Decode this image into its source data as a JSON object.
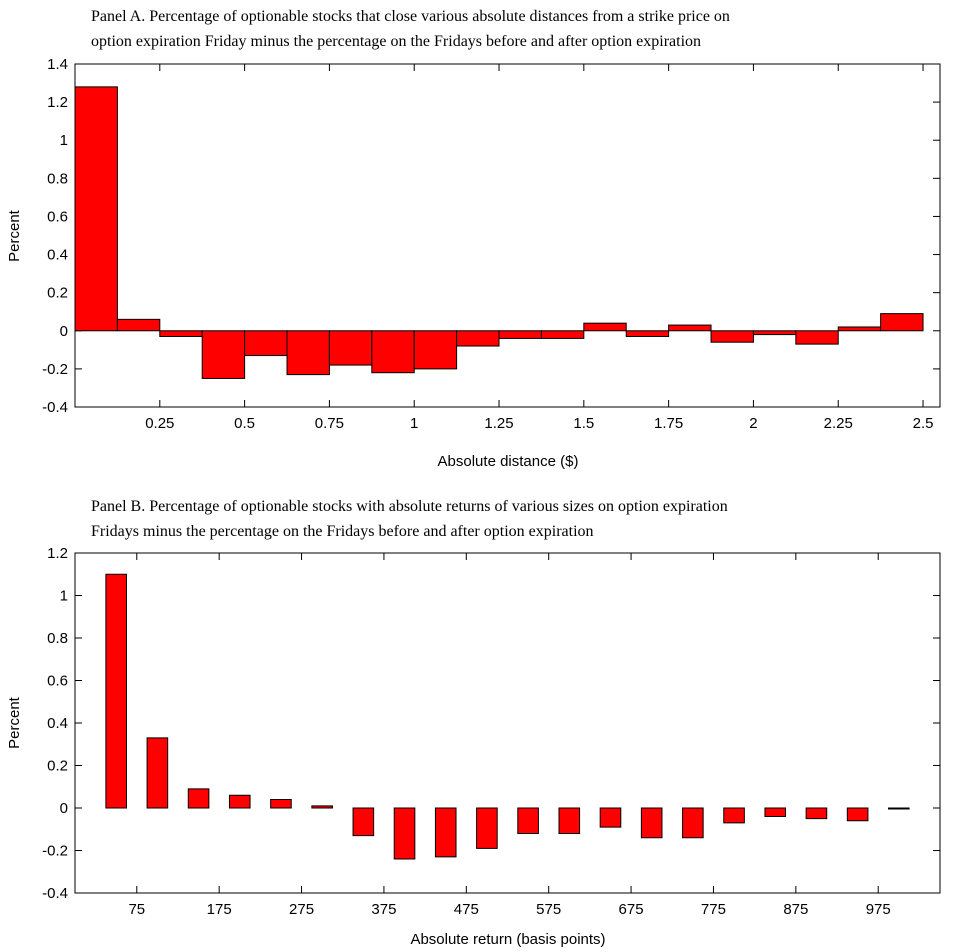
{
  "chart_data": [
    {
      "type": "bar",
      "title_lines": [
        "Panel A.  Percentage of optionable stocks that close various absolute distances from a strike price on",
        "option expiration Friday minus the percentage on the Fridays before and after option expiration"
      ],
      "xlabel": "Absolute distance  ($)",
      "ylabel": "Percent",
      "ylim": [
        -0.4,
        1.4
      ],
      "yticks": [
        -0.4,
        -0.2,
        0,
        0.2,
        0.4,
        0.6,
        0.8,
        1,
        1.2,
        1.4
      ],
      "ytick_labels": [
        "-0.4",
        "-0.2",
        "0",
        "0.2",
        "0.4",
        "0.6",
        "0.8",
        "1",
        "1.2",
        "1.4"
      ],
      "xlim": [
        0,
        2.55
      ],
      "xticks": [
        0.25,
        0.5,
        0.75,
        1,
        1.25,
        1.5,
        1.75,
        2,
        2.25,
        2.5
      ],
      "xtick_labels": [
        "0.25",
        "0.5",
        "0.75",
        "1",
        "1.25",
        "1.5",
        "1.75",
        "2",
        "2.25",
        "2.5"
      ],
      "bar_x": [
        0.0625,
        0.1875,
        0.3125,
        0.4375,
        0.5625,
        0.6875,
        0.8125,
        0.9375,
        1.0625,
        1.1875,
        1.3125,
        1.4375,
        1.5625,
        1.6875,
        1.8125,
        1.9375,
        2.0625,
        2.1875,
        2.3125,
        2.4375
      ],
      "bar_width": 0.125,
      "values": [
        1.28,
        0.06,
        -0.03,
        -0.25,
        -0.13,
        -0.23,
        -0.18,
        -0.22,
        -0.2,
        -0.08,
        -0.04,
        -0.04,
        0.04,
        -0.03,
        0.03,
        -0.06,
        -0.02,
        -0.07,
        0.02,
        0.09
      ],
      "bar_color": "#ff0000",
      "grid": false
    },
    {
      "type": "bar",
      "title_lines": [
        "Panel B.  Percentage of optionable stocks with absolute returns of various sizes on option expiration",
        "Fridays minus the percentage on the Fridays before and after option expiration"
      ],
      "xlabel": "Absolute return (basis points)",
      "ylabel": "Percent",
      "ylim": [
        -0.4,
        1.2
      ],
      "yticks": [
        -0.4,
        -0.2,
        0,
        0.2,
        0.4,
        0.6,
        0.8,
        1,
        1.2
      ],
      "ytick_labels": [
        "-0.4",
        "-0.2",
        "0",
        "0.2",
        "0.4",
        "0.6",
        "0.8",
        "1",
        "1.2"
      ],
      "xlim": [
        0,
        1050
      ],
      "xticks": [
        75,
        175,
        275,
        375,
        475,
        575,
        675,
        775,
        875,
        975
      ],
      "xtick_labels": [
        "75",
        "175",
        "275",
        "375",
        "475",
        "575",
        "675",
        "775",
        "875",
        "975"
      ],
      "bar_x": [
        50,
        100,
        150,
        200,
        250,
        300,
        350,
        400,
        450,
        500,
        550,
        600,
        650,
        700,
        750,
        800,
        850,
        900,
        950,
        1000
      ],
      "bar_width": 25,
      "values": [
        1.1,
        0.33,
        0.09,
        0.06,
        0.04,
        0.01,
        -0.13,
        -0.24,
        -0.23,
        -0.19,
        -0.12,
        -0.12,
        -0.09,
        -0.14,
        -0.14,
        -0.07,
        -0.04,
        -0.05,
        -0.06,
        0.0
      ],
      "bar_color": "#ff0000",
      "grid": false
    }
  ]
}
